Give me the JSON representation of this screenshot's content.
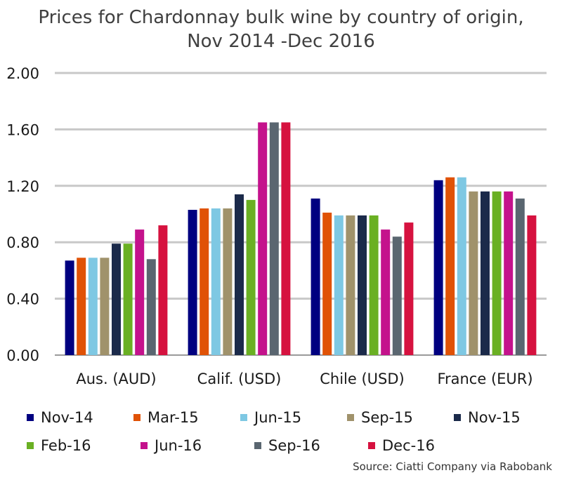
{
  "chart_data": {
    "type": "bar",
    "title_lines": [
      "Prices for Chardonnay bulk wine by country of origin,",
      "Nov 2014 -Dec 2016"
    ],
    "categories": [
      "Aus. (AUD)",
      "Calif. (USD)",
      "Chile (USD)",
      "France (EUR)"
    ],
    "series": [
      {
        "name": "Nov-14",
        "color": "#000080",
        "values": [
          0.67,
          1.03,
          1.11,
          1.24
        ]
      },
      {
        "name": "Mar-15",
        "color": "#e05206",
        "values": [
          0.69,
          1.04,
          1.01,
          1.26
        ]
      },
      {
        "name": "Jun-15",
        "color": "#7ec8e3",
        "values": [
          0.69,
          1.04,
          0.99,
          1.26
        ]
      },
      {
        "name": "Sep-15",
        "color": "#a0926b",
        "values": [
          0.69,
          1.04,
          0.99,
          1.16
        ]
      },
      {
        "name": "Nov-15",
        "color": "#1b2a4a",
        "values": [
          0.79,
          1.14,
          0.99,
          1.16
        ]
      },
      {
        "name": "Feb-16",
        "color": "#6ab023",
        "values": [
          0.79,
          1.1,
          0.99,
          1.16
        ]
      },
      {
        "name": "Jun-16",
        "color": "#c4128c",
        "values": [
          0.89,
          1.65,
          0.89,
          1.16
        ]
      },
      {
        "name": "Sep-16",
        "color": "#5a6670",
        "values": [
          0.68,
          1.65,
          0.84,
          1.11
        ]
      },
      {
        "name": "Dec-16",
        "color": "#d6123f",
        "values": [
          0.92,
          1.65,
          0.94,
          0.99
        ]
      }
    ],
    "yticks": [
      "0.00",
      "0.40",
      "0.80",
      "1.20",
      "1.60",
      "2.00"
    ],
    "ylim": [
      0,
      2.0
    ],
    "grid": true,
    "legend_position": "bottom",
    "source": "Source: Ciatti Company via Rabobank"
  }
}
